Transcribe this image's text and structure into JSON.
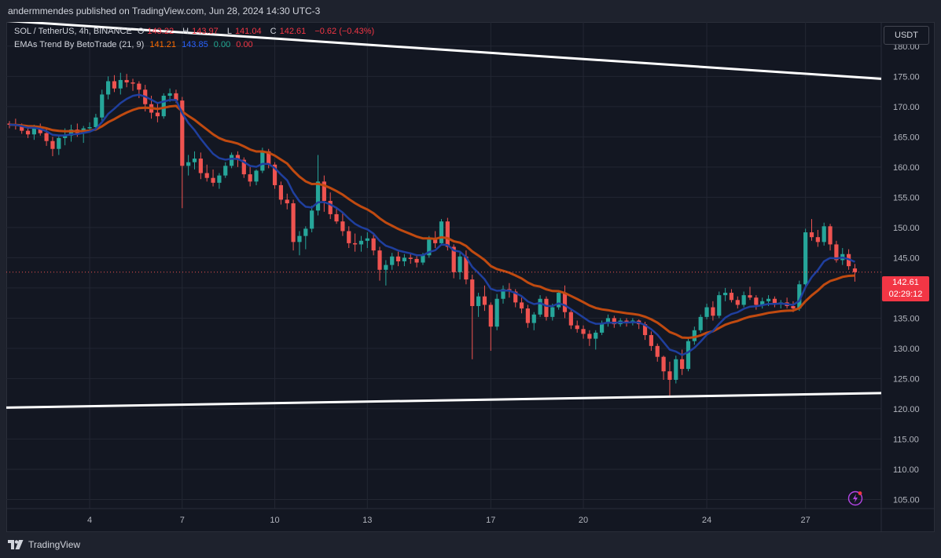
{
  "header": {
    "publisher": "andermmendes published on TradingView.com, Jun 28, 2024 14:30 UTC-3"
  },
  "legend": {
    "line1": {
      "symbol": "SOL / TetherUS, 4h, BINANCE",
      "o_key": "O",
      "o_val": "143.22",
      "h_key": "H",
      "h_val": "143.97",
      "l_key": "L",
      "l_val": "141.04",
      "c_key": "C",
      "c_val": "142.61",
      "change": "−0.62 (−0.43%)"
    },
    "line2": {
      "name": "EMAs Trend By BetoTrade (21, 9)",
      "v1": "141.21",
      "v2": "143.85",
      "v3": "0.00",
      "v4": "0.00"
    }
  },
  "currency": "USDT",
  "price_tag": {
    "price": "142.61",
    "countdown": "02:29:12"
  },
  "footer": {
    "brand": "TradingView"
  },
  "colors": {
    "up": "#26a69a",
    "down": "#ef5350",
    "ema_fast": "#1f3f9e",
    "ema_slow": "#c04a10",
    "trendline": "#ffffff"
  },
  "icons": {
    "tv_logo": "tradingview-logo-icon",
    "bolt": "lightning-icon"
  },
  "chart_data": {
    "type": "candlestick",
    "title": "SOL / TetherUS, 4h, BINANCE",
    "ylim": [
      103.5,
      184
    ],
    "y_ticks": [
      "180.00",
      "175.00",
      "170.00",
      "165.00",
      "160.00",
      "155.00",
      "150.00",
      "145.00",
      "140.00",
      "135.00",
      "130.00",
      "125.00",
      "120.00",
      "115.00",
      "110.00",
      "105.00"
    ],
    "x_ticks": [
      "4",
      "7",
      "10",
      "13",
      "17",
      "20",
      "24",
      "27"
    ],
    "grid": true,
    "last_price": 142.61,
    "ohlc": [
      [
        167.2,
        167.6,
        166.4,
        167.0
      ],
      [
        167.0,
        168.0,
        166.2,
        166.8
      ],
      [
        166.8,
        167.2,
        165.5,
        166.0
      ],
      [
        166.0,
        166.8,
        164.8,
        165.4
      ],
      [
        165.4,
        167.0,
        164.5,
        166.5
      ],
      [
        166.5,
        167.2,
        165.2,
        165.6
      ],
      [
        165.6,
        166.4,
        163.5,
        164.3
      ],
      [
        164.3,
        165.0,
        161.8,
        163.0
      ],
      [
        163.0,
        165.2,
        162.0,
        164.8
      ],
      [
        164.8,
        166.4,
        163.6,
        165.2
      ],
      [
        165.2,
        167.0,
        164.2,
        166.2
      ],
      [
        166.2,
        167.2,
        165.0,
        165.6
      ],
      [
        165.6,
        166.8,
        164.0,
        166.4
      ],
      [
        166.4,
        167.4,
        165.8,
        166.6
      ],
      [
        166.6,
        168.8,
        166.0,
        168.2
      ],
      [
        168.2,
        172.8,
        167.6,
        172.0
      ],
      [
        172.0,
        175.0,
        171.2,
        174.2
      ],
      [
        174.2,
        175.2,
        172.4,
        173.0
      ],
      [
        173.0,
        175.6,
        172.0,
        174.4
      ],
      [
        174.4,
        175.4,
        173.2,
        174.0
      ],
      [
        174.0,
        174.6,
        172.6,
        173.8
      ],
      [
        173.8,
        174.2,
        171.4,
        172.8
      ],
      [
        172.8,
        173.6,
        169.2,
        170.4
      ],
      [
        170.4,
        171.8,
        168.0,
        169.0
      ],
      [
        169.0,
        170.6,
        167.4,
        168.4
      ],
      [
        168.4,
        172.2,
        168.0,
        171.8
      ],
      [
        171.8,
        173.0,
        170.8,
        172.2
      ],
      [
        172.2,
        172.8,
        170.6,
        171.0
      ],
      [
        171.0,
        171.6,
        153.2,
        160.2
      ],
      [
        160.2,
        162.0,
        158.6,
        160.8
      ],
      [
        160.8,
        162.6,
        159.6,
        161.4
      ],
      [
        161.4,
        162.4,
        158.0,
        159.0
      ],
      [
        159.0,
        160.4,
        157.6,
        158.2
      ],
      [
        158.2,
        159.6,
        156.8,
        157.4
      ],
      [
        157.4,
        159.0,
        156.4,
        158.6
      ],
      [
        158.6,
        160.8,
        158.2,
        160.2
      ],
      [
        160.2,
        162.4,
        159.8,
        162.0
      ],
      [
        162.0,
        162.6,
        160.0,
        161.2
      ],
      [
        161.2,
        161.6,
        158.2,
        158.8
      ],
      [
        158.8,
        160.0,
        156.8,
        157.6
      ],
      [
        157.6,
        159.6,
        157.0,
        159.4
      ],
      [
        159.4,
        163.2,
        159.0,
        162.6
      ],
      [
        162.6,
        163.0,
        159.8,
        160.4
      ],
      [
        160.4,
        160.8,
        156.4,
        157.0
      ],
      [
        157.0,
        157.6,
        153.8,
        154.6
      ],
      [
        154.6,
        155.6,
        153.0,
        154.0
      ],
      [
        154.0,
        154.6,
        146.2,
        147.6
      ],
      [
        147.6,
        149.4,
        145.4,
        148.6
      ],
      [
        148.6,
        150.2,
        146.4,
        149.8
      ],
      [
        149.8,
        153.6,
        149.2,
        152.8
      ],
      [
        152.8,
        162.0,
        152.0,
        157.6
      ],
      [
        157.6,
        158.6,
        152.6,
        154.4
      ],
      [
        154.4,
        155.8,
        151.4,
        152.2
      ],
      [
        152.2,
        153.4,
        150.6,
        151.0
      ],
      [
        151.0,
        152.4,
        148.6,
        149.4
      ],
      [
        149.4,
        150.2,
        146.6,
        147.4
      ],
      [
        147.4,
        149.0,
        146.0,
        147.2
      ],
      [
        147.2,
        148.6,
        146.0,
        147.8
      ],
      [
        147.8,
        149.2,
        146.6,
        148.2
      ],
      [
        148.2,
        148.8,
        145.4,
        146.2
      ],
      [
        146.2,
        146.8,
        141.2,
        143.0
      ],
      [
        143.0,
        144.6,
        140.4,
        143.8
      ],
      [
        143.8,
        145.8,
        143.0,
        145.2
      ],
      [
        145.2,
        146.0,
        143.6,
        144.4
      ],
      [
        144.4,
        145.6,
        143.6,
        145.0
      ],
      [
        145.0,
        145.8,
        144.0,
        144.8
      ],
      [
        144.8,
        145.4,
        143.4,
        144.2
      ],
      [
        144.2,
        145.8,
        143.8,
        145.4
      ],
      [
        145.4,
        148.6,
        145.0,
        148.0
      ],
      [
        148.0,
        149.4,
        146.6,
        147.4
      ],
      [
        147.4,
        151.4,
        147.0,
        151.0
      ],
      [
        151.0,
        151.6,
        146.2,
        146.8
      ],
      [
        146.8,
        147.2,
        141.6,
        142.6
      ],
      [
        142.6,
        145.8,
        141.4,
        145.2
      ],
      [
        145.2,
        146.2,
        140.6,
        141.4
      ],
      [
        141.4,
        142.2,
        128.2,
        137.0
      ],
      [
        137.0,
        139.2,
        135.2,
        138.6
      ],
      [
        138.6,
        140.4,
        136.2,
        137.2
      ],
      [
        137.2,
        137.6,
        129.6,
        133.6
      ],
      [
        133.6,
        139.0,
        133.0,
        138.2
      ],
      [
        138.2,
        140.4,
        137.4,
        139.8
      ],
      [
        139.8,
        140.8,
        138.4,
        139.4
      ],
      [
        139.4,
        139.8,
        136.8,
        137.6
      ],
      [
        137.6,
        138.4,
        135.8,
        136.6
      ],
      [
        136.6,
        137.2,
        133.4,
        134.2
      ],
      [
        134.2,
        136.0,
        133.0,
        135.6
      ],
      [
        135.6,
        138.8,
        135.2,
        138.2
      ],
      [
        138.2,
        138.6,
        134.6,
        135.2
      ],
      [
        135.2,
        137.4,
        134.6,
        136.8
      ],
      [
        136.8,
        139.6,
        136.4,
        139.2
      ],
      [
        139.2,
        140.4,
        135.0,
        136.0
      ],
      [
        136.0,
        136.4,
        133.2,
        133.8
      ],
      [
        133.8,
        134.6,
        132.6,
        133.2
      ],
      [
        133.2,
        133.8,
        131.6,
        132.4
      ],
      [
        132.4,
        133.0,
        130.4,
        131.6
      ],
      [
        131.6,
        133.0,
        129.8,
        132.6
      ],
      [
        132.6,
        134.6,
        132.2,
        134.2
      ],
      [
        134.2,
        135.6,
        133.6,
        135.0
      ],
      [
        135.0,
        135.4,
        133.4,
        134.0
      ],
      [
        134.0,
        135.0,
        133.6,
        134.6
      ],
      [
        134.6,
        135.0,
        133.6,
        134.2
      ],
      [
        134.2,
        135.0,
        133.8,
        134.6
      ],
      [
        134.6,
        134.8,
        133.2,
        134.0
      ],
      [
        134.0,
        134.4,
        131.4,
        132.2
      ],
      [
        132.2,
        132.8,
        129.6,
        130.4
      ],
      [
        130.4,
        130.8,
        127.8,
        128.6
      ],
      [
        128.6,
        128.8,
        124.8,
        126.2
      ],
      [
        126.2,
        127.8,
        122.0,
        124.8
      ],
      [
        124.8,
        128.8,
        124.2,
        128.2
      ],
      [
        128.2,
        129.8,
        125.6,
        126.6
      ],
      [
        126.6,
        131.8,
        126.2,
        131.2
      ],
      [
        131.2,
        133.6,
        130.6,
        133.0
      ],
      [
        133.0,
        135.6,
        132.6,
        135.2
      ],
      [
        135.2,
        137.4,
        134.8,
        136.8
      ],
      [
        136.8,
        137.8,
        134.6,
        135.4
      ],
      [
        135.4,
        139.4,
        135.0,
        138.8
      ],
      [
        138.8,
        140.0,
        137.8,
        139.2
      ],
      [
        139.2,
        139.8,
        137.6,
        138.0
      ],
      [
        138.0,
        138.6,
        136.6,
        137.2
      ],
      [
        137.2,
        139.4,
        136.8,
        138.8
      ],
      [
        138.8,
        140.2,
        138.0,
        138.4
      ],
      [
        138.4,
        138.8,
        136.4,
        137.2
      ],
      [
        137.2,
        138.4,
        136.6,
        137.8
      ],
      [
        137.8,
        138.8,
        137.0,
        138.2
      ],
      [
        138.2,
        138.6,
        136.8,
        137.4
      ],
      [
        137.4,
        138.0,
        136.6,
        137.6
      ],
      [
        137.6,
        138.4,
        136.6,
        137.0
      ],
      [
        137.0,
        137.8,
        136.0,
        136.6
      ],
      [
        136.6,
        141.2,
        136.2,
        140.6
      ],
      [
        140.6,
        149.8,
        140.2,
        149.2
      ],
      [
        149.2,
        151.4,
        147.8,
        148.4
      ],
      [
        148.4,
        149.6,
        146.8,
        147.6
      ],
      [
        147.6,
        150.8,
        147.0,
        150.2
      ],
      [
        150.2,
        150.6,
        146.2,
        147.2
      ],
      [
        147.2,
        147.8,
        144.2,
        144.6
      ],
      [
        144.6,
        146.6,
        143.8,
        145.6
      ],
      [
        145.6,
        146.4,
        143.0,
        143.6
      ],
      [
        143.22,
        143.97,
        141.04,
        142.61
      ]
    ],
    "series": [
      {
        "name": "EMA 9",
        "color": "#1f3f9e"
      },
      {
        "name": "EMA 21",
        "color": "#c04a10"
      }
    ],
    "trendlines": [
      {
        "name": "upper-resistance",
        "from": 184.2,
        "to": 174.6
      },
      {
        "name": "lower-support",
        "from": 120.2,
        "to": 122.6
      }
    ]
  }
}
